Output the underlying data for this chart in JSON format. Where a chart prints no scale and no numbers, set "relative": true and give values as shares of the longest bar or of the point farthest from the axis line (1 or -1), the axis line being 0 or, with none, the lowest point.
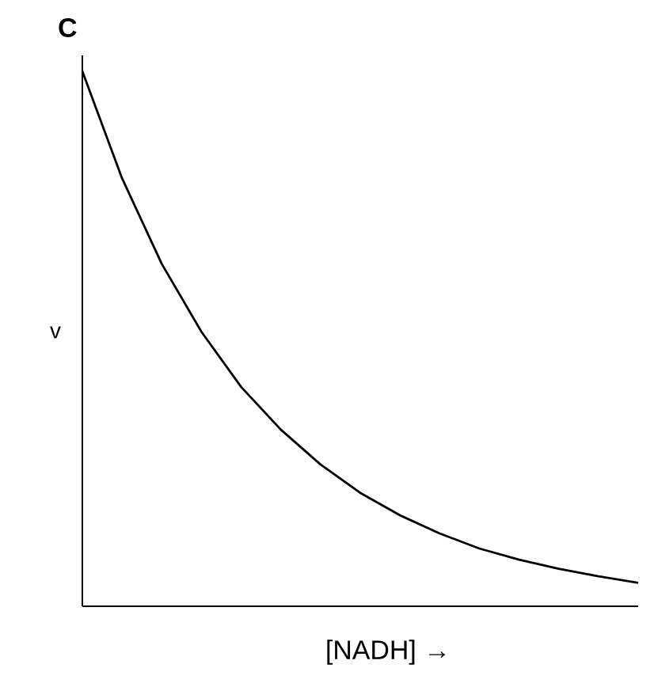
{
  "chart_data": {
    "type": "line",
    "title": "C",
    "ylabel": "v",
    "xlabel": "[NADH] →",
    "relative": true,
    "categories": [
      null,
      null,
      null,
      null,
      null,
      null,
      null,
      null,
      null,
      null,
      null,
      null,
      null,
      null,
      null
    ],
    "series": [
      {
        "color": "#000000",
        "values": [
          1,
          0.8,
          0.64,
          0.513,
          0.41,
          0.33,
          0.265,
          0.212,
          0.17,
          0.136,
          0.108,
          0.087,
          0.07,
          0.056,
          0.044
        ]
      }
    ]
  }
}
